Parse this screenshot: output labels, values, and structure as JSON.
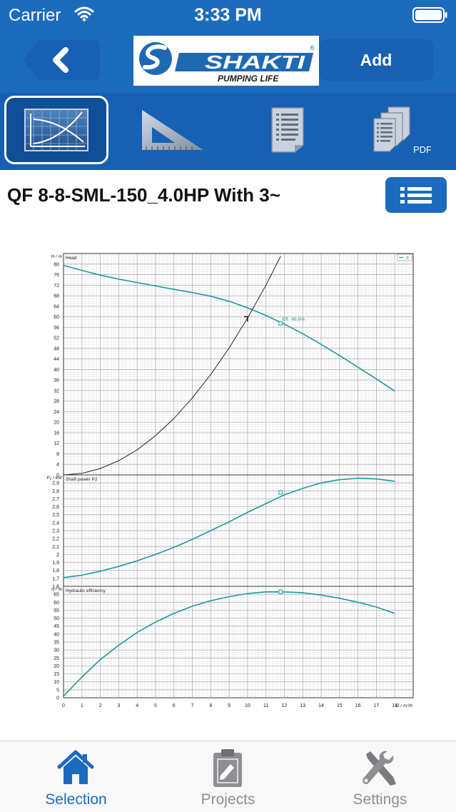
{
  "status_bar": {
    "carrier": "Carrier",
    "time": "3:33 PM"
  },
  "nav": {
    "logo": {
      "brand": "SHAKTI",
      "tagline": "PUMPING LIFE",
      "trademark": "®"
    },
    "add_label": "Add"
  },
  "toolbar": {
    "items": [
      {
        "icon": "performance-curve-icon",
        "active": true
      },
      {
        "icon": "set-square-icon",
        "active": false
      },
      {
        "icon": "document-icon",
        "active": false
      },
      {
        "icon": "pdf-documents-icon",
        "label": "PDF",
        "active": false
      }
    ]
  },
  "product": {
    "title": "QF 8-8-SML-150_4.0HP With 3~"
  },
  "colors": {
    "primary": "#1c6bbf",
    "toolbar": "#1760b3",
    "curve": "#1a9aa0",
    "system_curve": "#111111",
    "tab_active": "#1c6bbf",
    "tab_inactive": "#8e8e93"
  },
  "chart_data": [
    {
      "type": "line",
      "ylabel": "H / m",
      "title": "Head",
      "legend": "8",
      "legend_position": "top-right",
      "ylim": [
        0,
        84
      ],
      "y_ticks": [
        0,
        4,
        8,
        12,
        16,
        20,
        24,
        28,
        32,
        36,
        40,
        44,
        48,
        52,
        56,
        60,
        64,
        68,
        72,
        76,
        80
      ],
      "annotation": {
        "text": "Eff.: 66,6%",
        "x": 11.8,
        "y": 57.5
      },
      "operating_point": {
        "x": 10,
        "y": 59.5
      },
      "series": [
        {
          "name": "8",
          "x": [
            0,
            1,
            2,
            3,
            4,
            5,
            6,
            7,
            8,
            9,
            10,
            11,
            12,
            13,
            14,
            15,
            16,
            17,
            18
          ],
          "values": [
            79.5,
            77.6,
            75.8,
            74.3,
            73.0,
            71.7,
            70.4,
            69.2,
            67.8,
            65.9,
            63.4,
            60.5,
            57.2,
            53.6,
            49.5,
            45.3,
            40.9,
            36.4,
            31.8
          ]
        },
        {
          "x": [
            0,
            1,
            2,
            3,
            4,
            5,
            6,
            7,
            8,
            9,
            10,
            11,
            11.8
          ],
          "values": [
            0,
            0.6,
            2.4,
            5.4,
            9.5,
            14.9,
            21.4,
            29.2,
            38.1,
            48.2,
            59.5,
            72.0,
            83.0
          ]
        }
      ]
    },
    {
      "type": "line",
      "ylabel": "P₂ / kW",
      "title": "Shaft power P2",
      "ylim": [
        1.6,
        3.0
      ],
      "y_ticks": [
        1.6,
        1.7,
        1.8,
        1.9,
        2,
        2.1,
        2.2,
        2.3,
        2.4,
        2.5,
        2.6,
        2.7,
        2.8,
        2.9
      ],
      "y_tick_labels": [
        "1,6",
        "1,7",
        "1,8",
        "1,9",
        "2",
        "2,1",
        "2,2",
        "2,3",
        "2,4",
        "2,5",
        "2,6",
        "2,7",
        "2,8",
        "2,9"
      ],
      "marker": {
        "x": 11.8,
        "y": 2.78
      },
      "series": [
        {
          "x": [
            0,
            1,
            2,
            3,
            4,
            5,
            6,
            7,
            8,
            9,
            10,
            11,
            12,
            13,
            14,
            15,
            16,
            17,
            18
          ],
          "values": [
            1.71,
            1.74,
            1.79,
            1.85,
            1.92,
            2.0,
            2.09,
            2.19,
            2.3,
            2.41,
            2.53,
            2.64,
            2.75,
            2.83,
            2.9,
            2.94,
            2.96,
            2.95,
            2.92
          ]
        }
      ]
    },
    {
      "type": "line",
      "ylabel": "η / %",
      "title": "Hydraulic efficiency",
      "ylim": [
        0,
        70
      ],
      "y_ticks": [
        0,
        5,
        10,
        15,
        20,
        25,
        30,
        35,
        40,
        45,
        50,
        55,
        60,
        65
      ],
      "xlabel": "Q / m³/h",
      "xlim": [
        0,
        19
      ],
      "x_ticks": [
        0,
        1,
        2,
        3,
        4,
        5,
        6,
        7,
        8,
        9,
        10,
        11,
        12,
        13,
        14,
        15,
        16,
        17,
        18
      ],
      "marker": {
        "x": 11.8,
        "y": 66.6
      },
      "series": [
        {
          "x": [
            0,
            1,
            2,
            3,
            4,
            5,
            6,
            7,
            8,
            9,
            10,
            11,
            12,
            13,
            14,
            15,
            16,
            17,
            18
          ],
          "values": [
            1,
            13,
            24,
            33,
            41,
            47.5,
            53,
            57.5,
            61,
            63.5,
            65.5,
            66.5,
            66.5,
            66,
            64.5,
            62.5,
            60,
            57,
            53
          ]
        }
      ]
    }
  ],
  "tabbar": {
    "items": [
      {
        "label": "Selection",
        "icon": "home-icon",
        "active": true
      },
      {
        "label": "Projects",
        "icon": "clipboard-icon",
        "active": false
      },
      {
        "label": "Settings",
        "icon": "wrench-screwdriver-icon",
        "active": false
      }
    ]
  }
}
